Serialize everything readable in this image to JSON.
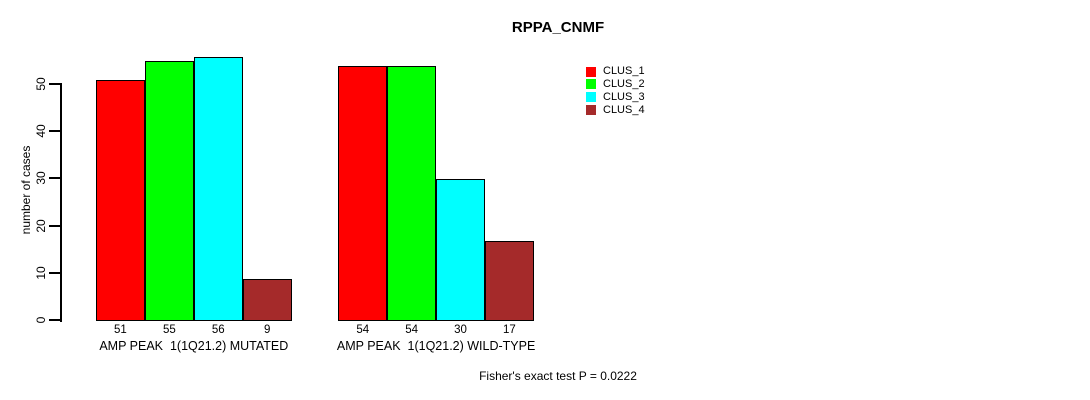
{
  "chart_data": {
    "type": "bar",
    "title": "RPPA_CNMF",
    "xlabel": "",
    "ylabel": "number of cases",
    "ylim": [
      0,
      56
    ],
    "yticks": [
      0,
      10,
      20,
      30,
      40,
      50
    ],
    "grid": false,
    "legend_position": "top-right",
    "show_values_below_bars": true,
    "categories": [
      "AMP PEAK  1(1Q21.2) MUTATED",
      "AMP PEAK  1(1Q21.2) WILD-TYPE"
    ],
    "series": [
      {
        "name": "CLUS_1",
        "color": "#FF0000",
        "values": [
          51,
          54
        ]
      },
      {
        "name": "CLUS_2",
        "color": "#00FF00",
        "values": [
          55,
          54
        ]
      },
      {
        "name": "CLUS_3",
        "color": "#00FFFF",
        "values": [
          56,
          30
        ]
      },
      {
        "name": "CLUS_4",
        "color": "#A52A2A",
        "values": [
          9,
          17
        ]
      }
    ],
    "annotation": "Fisher's exact test P = 0.0222"
  }
}
